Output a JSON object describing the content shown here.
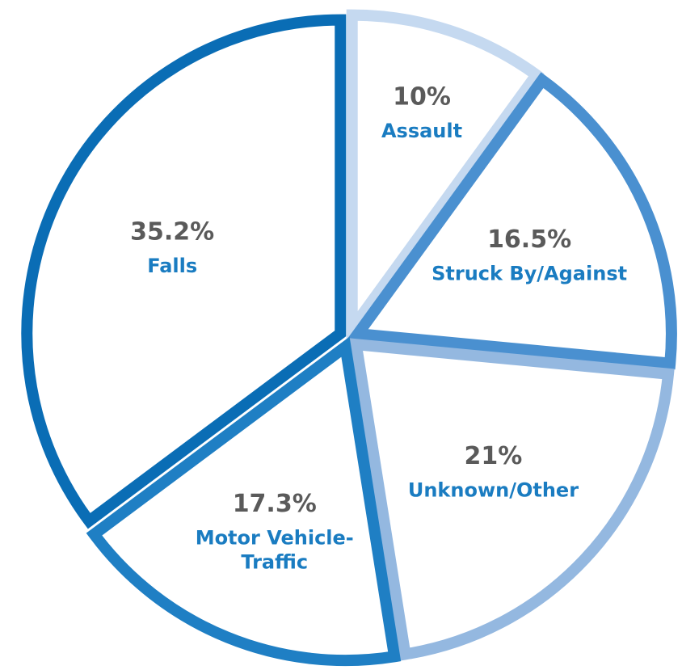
{
  "chart_data": {
    "type": "pie",
    "categories": [
      "Assault",
      "Struck By/Against",
      "Unknown/Other",
      "Motor Vehicle-Traffic",
      "Falls"
    ],
    "values": [
      10,
      16.5,
      21,
      17.3,
      35.2
    ],
    "value_labels": [
      "10%",
      "16.5%",
      "21%",
      "17.3%",
      "35.2%"
    ],
    "colors": [
      "#c5d9f0",
      "#4a90d0",
      "#94b8e0",
      "#1f7fc4",
      "#0a6db5"
    ]
  }
}
